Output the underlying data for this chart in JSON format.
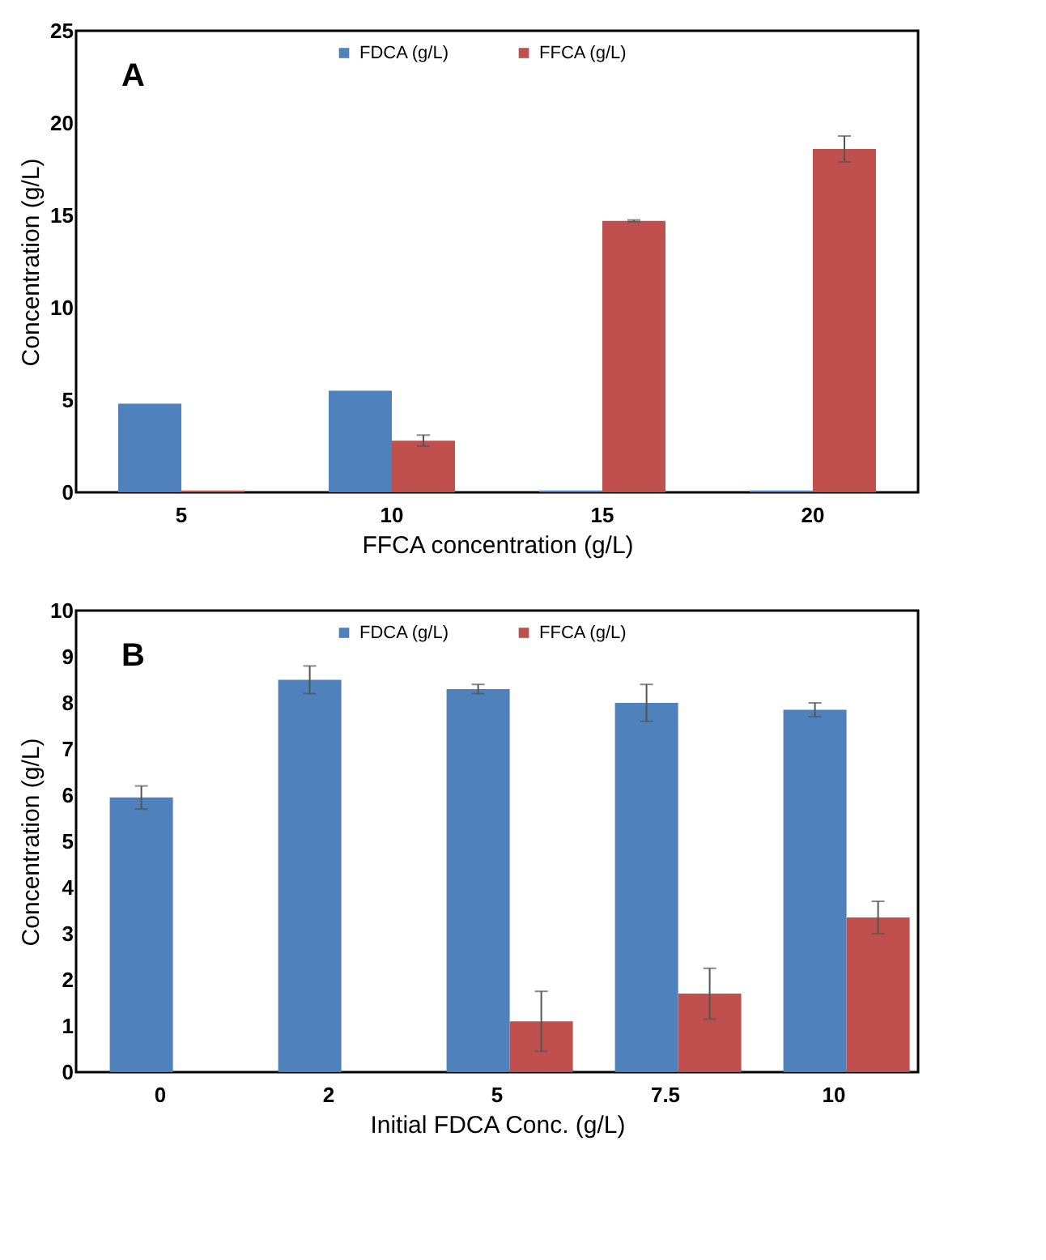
{
  "chart_data": [
    {
      "type": "bar",
      "annotations": [
        "A"
      ],
      "xlabel": "FFCA concentration (g/L)",
      "ylabel": "Concentration (g/L)",
      "categories": [
        "5",
        "10",
        "15",
        "20"
      ],
      "ylim": [
        0,
        25
      ],
      "yticks": [
        0,
        5,
        10,
        15,
        20,
        25
      ],
      "grid": false,
      "legend": "top",
      "series": [
        {
          "name": "FDCA (g/L)",
          "color": "#4f81bd",
          "values": [
            4.8,
            5.5,
            0.1,
            0.1
          ]
        },
        {
          "name": "FFCA (g/L)",
          "color": "#c0504d",
          "values": [
            0.1,
            2.8,
            14.7,
            18.6
          ],
          "errors": [
            null,
            0.3,
            0.05,
            0.7
          ]
        }
      ]
    },
    {
      "type": "bar",
      "annotations": [
        "B"
      ],
      "xlabel": "Initial FDCA Conc. (g/L)",
      "ylabel": "Concentration (g/L)",
      "categories": [
        "0",
        "2",
        "5",
        "7.5",
        "10"
      ],
      "ylim": [
        0,
        10
      ],
      "yticks": [
        0,
        1,
        2,
        3,
        4,
        5,
        6,
        7,
        8,
        9,
        10
      ],
      "grid": false,
      "legend": "top",
      "series": [
        {
          "name": "FDCA (g/L)",
          "color": "#4f81bd",
          "values": [
            5.95,
            8.5,
            8.3,
            8.0,
            7.85
          ],
          "errors": [
            0.25,
            0.3,
            0.1,
            0.4,
            0.15
          ]
        },
        {
          "name": "FFCA (g/L)",
          "color": "#c0504d",
          "values": [
            null,
            null,
            1.1,
            1.7,
            3.35
          ],
          "errors": [
            null,
            null,
            0.65,
            0.55,
            0.35
          ]
        }
      ]
    }
  ]
}
